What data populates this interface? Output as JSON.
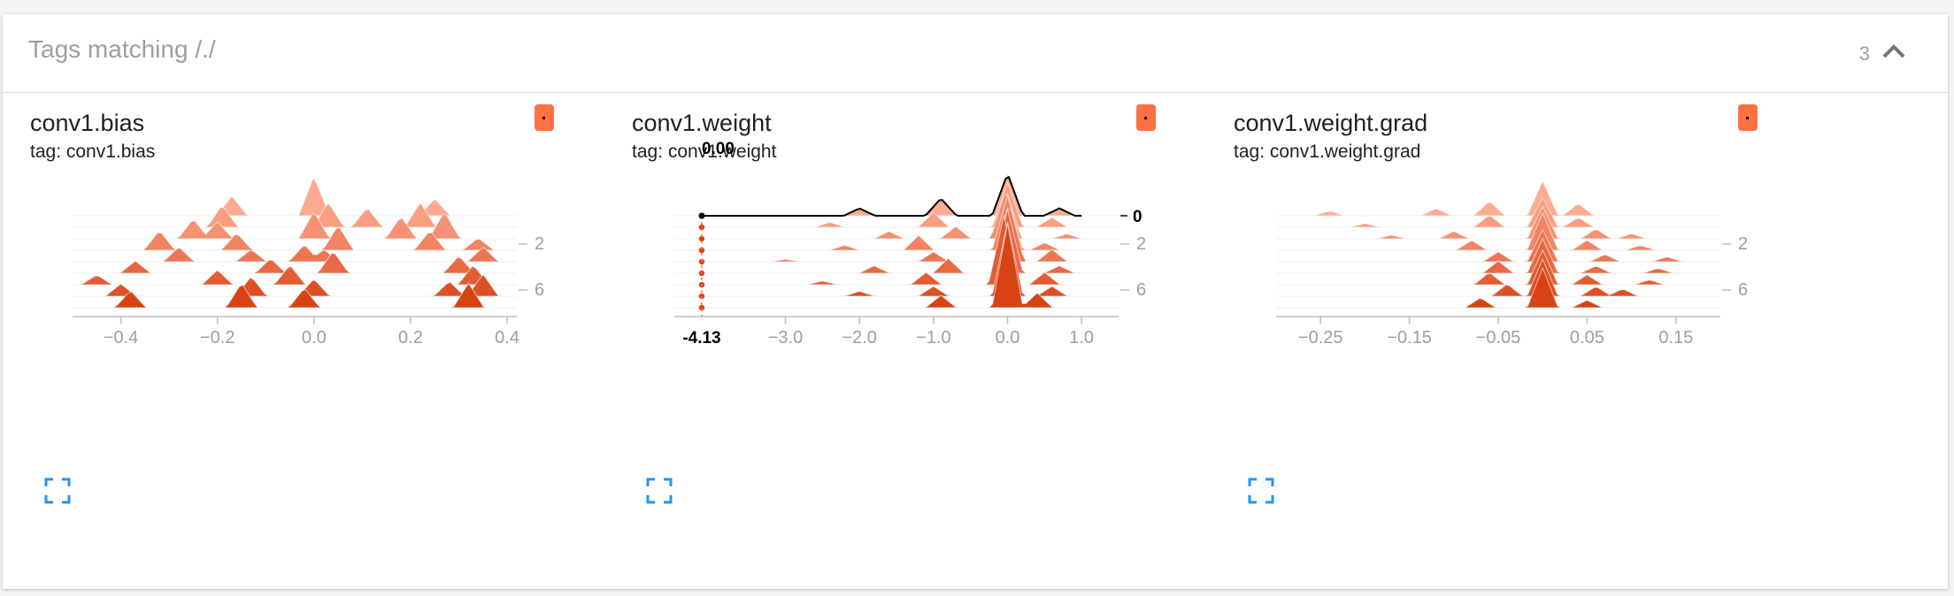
{
  "header": {
    "title": "Tags matching /./",
    "count": "3"
  },
  "colors": {
    "badge": "#ff7043",
    "series_start": "#d84315",
    "series_end": "#ffab91",
    "expand_icon": "#2196f3"
  },
  "icons": {
    "collapse": "chevron-up-icon",
    "expand": "fullscreen-icon"
  },
  "chart_data": [
    {
      "type": "area",
      "subtype": "histogram-offset",
      "title": "conv1.bias",
      "tag": "tag: conv1.bias",
      "xlim": [
        -0.5,
        0.42
      ],
      "x_ticks": [
        -0.4,
        -0.2,
        0.0,
        0.2,
        0.4
      ],
      "x_tick_labels": [
        "−0.4",
        "−0.2",
        "0.0",
        "0.2",
        "0.4"
      ],
      "step_ticks": [
        2,
        6
      ],
      "step_tick_labels": [
        "2",
        "6"
      ],
      "steps": 9,
      "hover": null,
      "peaks": [
        [
          [
            -0.38,
            0.7
          ],
          [
            -0.15,
            1.0
          ],
          [
            -0.02,
            0.8
          ],
          [
            0.32,
            1.0
          ]
        ],
        [
          [
            -0.4,
            0.5
          ],
          [
            -0.13,
            0.8
          ],
          [
            0.0,
            0.7
          ],
          [
            0.28,
            0.6
          ],
          [
            0.35,
            0.9
          ]
        ],
        [
          [
            -0.45,
            0.4
          ],
          [
            -0.2,
            0.6
          ],
          [
            -0.05,
            0.8
          ],
          [
            0.33,
            0.8
          ]
        ],
        [
          [
            -0.37,
            0.5
          ],
          [
            -0.09,
            0.6
          ],
          [
            0.04,
            0.9
          ],
          [
            0.3,
            0.7
          ]
        ],
        [
          [
            -0.28,
            0.6
          ],
          [
            -0.13,
            0.5
          ],
          [
            -0.02,
            0.7
          ],
          [
            0.02,
            0.5
          ],
          [
            0.35,
            0.6
          ]
        ],
        [
          [
            -0.32,
            0.8
          ],
          [
            -0.16,
            0.7
          ],
          [
            0.05,
            1.0
          ],
          [
            0.24,
            0.8
          ],
          [
            0.34,
            0.5
          ]
        ],
        [
          [
            -0.25,
            0.8
          ],
          [
            -0.2,
            0.7
          ],
          [
            0.0,
            1.1
          ],
          [
            0.18,
            0.9
          ],
          [
            0.27,
            1.1
          ]
        ],
        [
          [
            -0.19,
            0.9
          ],
          [
            0.03,
            1.0
          ],
          [
            0.11,
            0.8
          ],
          [
            0.22,
            1.0
          ]
        ],
        [
          [
            -0.17,
            0.8
          ],
          [
            0.0,
            1.6
          ],
          [
            0.25,
            0.7
          ]
        ]
      ]
    },
    {
      "type": "area",
      "subtype": "histogram-offset",
      "title": "conv1.weight",
      "tag": "tag: conv1.weight",
      "xlim": [
        -4.5,
        1.5
      ],
      "x_ticks": [
        -3.0,
        -2.0,
        -1.0,
        0.0,
        1.0
      ],
      "x_tick_labels": [
        "−3.0",
        "−2.0",
        "−1.0",
        "0.0",
        "1.0"
      ],
      "step_ticks": [
        2,
        6
      ],
      "step_tick_labels": [
        "2",
        "6"
      ],
      "steps": 9,
      "hover": {
        "x_label": "-4.13",
        "value_label": "0.00",
        "step_label": "0"
      },
      "peaks": [
        [
          [
            0.0,
            3.4
          ],
          [
            -0.9,
            0.5
          ],
          [
            0.4,
            0.6
          ]
        ],
        [
          [
            0.0,
            3.0
          ],
          [
            -1.0,
            0.4
          ],
          [
            -2.0,
            0.2
          ],
          [
            0.6,
            0.4
          ]
        ],
        [
          [
            -0.05,
            2.8
          ],
          [
            -1.1,
            0.5
          ],
          [
            -2.5,
            0.15
          ],
          [
            0.5,
            0.5
          ]
        ],
        [
          [
            0.0,
            2.6
          ],
          [
            -0.8,
            0.6
          ],
          [
            -1.8,
            0.3
          ],
          [
            0.7,
            0.3
          ]
        ],
        [
          [
            0.02,
            2.4
          ],
          [
            -1.0,
            0.4
          ],
          [
            -3.0,
            0.1
          ],
          [
            0.6,
            0.5
          ]
        ],
        [
          [
            0.0,
            2.2
          ],
          [
            -1.2,
            0.6
          ],
          [
            -2.2,
            0.2
          ],
          [
            0.5,
            0.3
          ]
        ],
        [
          [
            -0.02,
            2.0
          ],
          [
            -0.7,
            0.5
          ],
          [
            -1.6,
            0.3
          ],
          [
            0.8,
            0.2
          ]
        ],
        [
          [
            0.0,
            1.8
          ],
          [
            -1.0,
            0.6
          ],
          [
            -2.4,
            0.2
          ],
          [
            0.6,
            0.4
          ]
        ],
        [
          [
            0.0,
            1.7
          ],
          [
            -0.9,
            0.7
          ],
          [
            -2.0,
            0.3
          ],
          [
            0.7,
            0.3
          ]
        ]
      ]
    },
    {
      "type": "area",
      "subtype": "histogram-offset",
      "title": "conv1.weight.grad",
      "tag": "tag: conv1.weight.grad",
      "xlim": [
        -0.3,
        0.2
      ],
      "x_ticks": [
        -0.25,
        -0.15,
        -0.05,
        0.05,
        0.15
      ],
      "x_tick_labels": [
        "−0.25",
        "−0.15",
        "−0.05",
        "0.05",
        "0.15"
      ],
      "step_ticks": [
        2,
        6
      ],
      "step_tick_labels": [
        "2",
        "6"
      ],
      "steps": 9,
      "hover": null,
      "peaks": [
        [
          [
            0.0,
            1.6
          ],
          [
            -0.07,
            0.4
          ],
          [
            0.05,
            0.3
          ]
        ],
        [
          [
            0.0,
            1.5
          ],
          [
            -0.04,
            0.5
          ],
          [
            0.06,
            0.4
          ],
          [
            0.09,
            0.3
          ]
        ],
        [
          [
            0.0,
            1.4
          ],
          [
            -0.06,
            0.5
          ],
          [
            0.05,
            0.4
          ],
          [
            0.12,
            0.2
          ]
        ],
        [
          [
            0.0,
            1.4
          ],
          [
            -0.05,
            0.5
          ],
          [
            0.06,
            0.3
          ],
          [
            0.13,
            0.2
          ]
        ],
        [
          [
            0.0,
            1.3
          ],
          [
            -0.05,
            0.4
          ],
          [
            0.07,
            0.3
          ],
          [
            0.14,
            0.2
          ]
        ],
        [
          [
            0.0,
            1.5
          ],
          [
            -0.08,
            0.4
          ],
          [
            0.05,
            0.4
          ],
          [
            0.11,
            0.2
          ]
        ],
        [
          [
            0.0,
            1.3
          ],
          [
            -0.1,
            0.3
          ],
          [
            -0.17,
            0.15
          ],
          [
            0.06,
            0.4
          ],
          [
            0.1,
            0.2
          ]
        ],
        [
          [
            0.0,
            1.2
          ],
          [
            -0.06,
            0.5
          ],
          [
            -0.2,
            0.15
          ],
          [
            0.04,
            0.4
          ]
        ],
        [
          [
            0.0,
            1.4
          ],
          [
            -0.06,
            0.6
          ],
          [
            -0.12,
            0.3
          ],
          [
            -0.24,
            0.2
          ],
          [
            0.04,
            0.5
          ]
        ]
      ]
    }
  ]
}
